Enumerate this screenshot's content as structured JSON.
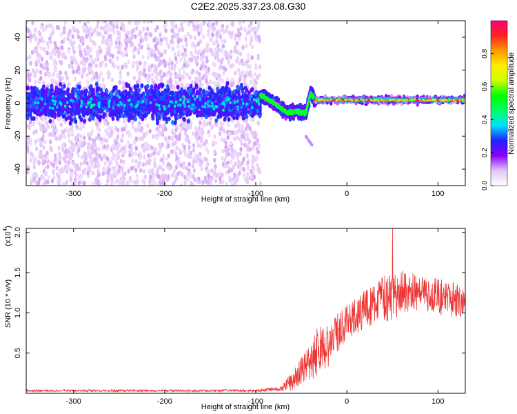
{
  "figure": {
    "title": "C2E2.2025.337.23.08.G30"
  },
  "chart_data": [
    {
      "type": "heatmap",
      "name": "spectrogram",
      "title": "C2E2.2025.337.23.08.G30",
      "xlabel": "Height of straight line (km)",
      "ylabel": "Frequency (Hz)",
      "xlim": [
        -352,
        130
      ],
      "ylim": [
        -50,
        50
      ],
      "xticks": [
        -300,
        -200,
        -100,
        0,
        100
      ],
      "xtick_labels": [
        "-300",
        "-200",
        "-100",
        "0",
        "100"
      ],
      "yticks": [
        -40,
        -20,
        0,
        20,
        40
      ],
      "ytick_labels": [
        "-40",
        "-20",
        "0",
        "20",
        "40"
      ],
      "colorbar": {
        "label": "Normalized spectral amplitude",
        "range": [
          0.0,
          1.0
        ],
        "ticks": [
          0.0,
          0.2,
          0.4,
          0.6,
          0.8
        ],
        "tick_labels": [
          "0.0",
          "0.2",
          "0.4",
          "0.6",
          "0.8"
        ],
        "colors": [
          "#ffffff",
          "#e4c6f8",
          "#8800ff",
          "#2222ff",
          "#00e0ff",
          "#00ff66",
          "#00ff00",
          "#ccff00",
          "#ffee00",
          "#ff9900",
          "#ff2222",
          "#ff0077"
        ]
      },
      "regions": [
        {
          "x": [
            -352,
            -95
          ],
          "centre_freq": 0,
          "core_halfwidth": 8,
          "core_amplitude": 0.2,
          "noise_amplitude": 0.05,
          "noise_extent": [
            -50,
            50
          ]
        },
        {
          "x": [
            -95,
            -35
          ],
          "centre_freq_trend": [
            [
              -95,
              5
            ],
            [
              -80,
              0
            ],
            [
              -65,
              -6
            ],
            [
              -55,
              -5
            ],
            [
              -45,
              -6
            ],
            [
              -40,
              6
            ],
            [
              -35,
              2
            ]
          ],
          "core_amplitude": 0.45
        },
        {
          "x": [
            -35,
            130
          ],
          "centre_freq": 2,
          "core_halfwidth": 3,
          "core_amplitude": 0.9
        }
      ]
    },
    {
      "type": "line",
      "name": "snr",
      "xlabel": "Height of straight line (km)",
      "ylabel": "SNR (10 * v/v)",
      "scale_label": "(x10",
      "scale_exponent": "4",
      "xlim": [
        -352,
        130
      ],
      "ylim": [
        0,
        2.05
      ],
      "xticks": [
        -300,
        -200,
        -100,
        0,
        100
      ],
      "xtick_labels": [
        "-300",
        "-200",
        "-100",
        "0",
        "100"
      ],
      "yticks": [
        0.5,
        1.0,
        1.5,
        2.0
      ],
      "ytick_labels": [
        "0.5",
        "1.0",
        "1.5",
        "2.0"
      ],
      "color": "#ee3333",
      "trend": [
        [
          -352,
          0.03
        ],
        [
          -100,
          0.03
        ],
        [
          -75,
          0.05
        ],
        [
          -60,
          0.12
        ],
        [
          -50,
          0.25
        ],
        [
          -40,
          0.35
        ],
        [
          -30,
          0.5
        ],
        [
          -20,
          0.55
        ],
        [
          -10,
          0.7
        ],
        [
          0,
          0.85
        ],
        [
          20,
          1.0
        ],
        [
          40,
          1.1
        ],
        [
          60,
          1.2
        ],
        [
          80,
          1.2
        ],
        [
          100,
          1.15
        ],
        [
          130,
          1.1
        ]
      ],
      "noise": [
        [
          -352,
          0.02
        ],
        [
          -100,
          0.02
        ],
        [
          -75,
          0.04
        ],
        [
          -50,
          0.25
        ],
        [
          -30,
          0.45
        ],
        [
          -10,
          0.35
        ],
        [
          20,
          0.35
        ],
        [
          50,
          0.45
        ],
        [
          80,
          0.35
        ],
        [
          130,
          0.3
        ]
      ],
      "peak": {
        "x": 50,
        "y": 2.05
      }
    }
  ]
}
